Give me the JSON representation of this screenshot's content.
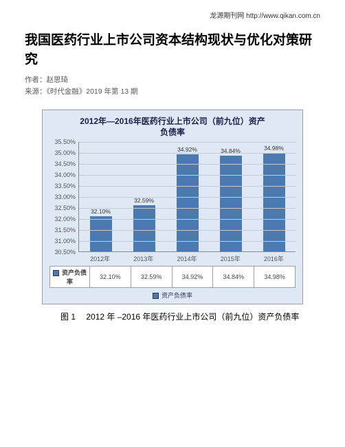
{
  "header": {
    "site_prefix": "龙源期刊网 ",
    "site_url": "http://www.qikan.com.cn"
  },
  "article": {
    "title": "我国医药行业上市公司资本结构现状与优化对策研究",
    "author_label": "作者：",
    "author": "赵思琦",
    "source_label": "来源：",
    "source": "《时代金融》2019 年第 13 期"
  },
  "chart": {
    "title_line1": "2012年—2016年医药行业上市公司（前九位）资产",
    "title_line2": "负债率",
    "type": "bar",
    "categories": [
      "2012年",
      "2013年",
      "2014年",
      "2015年",
      "2016年"
    ],
    "values": [
      32.1,
      32.59,
      34.92,
      34.84,
      34.98
    ],
    "value_labels": [
      "32.10%",
      "32.59%",
      "34.92%",
      "34.84%",
      "34.98%"
    ],
    "bar_color": "#4a7ab0",
    "ymin": 30.5,
    "ymax": 35.5,
    "yticks": [
      "35.50%",
      "35.00%",
      "34.50%",
      "34.00%",
      "33.50%",
      "33.00%",
      "32.50%",
      "32.00%",
      "31.50%",
      "31.00%",
      "30.50%"
    ],
    "yvalues": [
      35.5,
      35.0,
      34.5,
      34.0,
      33.5,
      33.0,
      32.5,
      32.0,
      31.5,
      31.0,
      30.5
    ],
    "row_header": "资产负债率",
    "row_cells": [
      "32.10%",
      "32.59%",
      "34.92%",
      "34.84%",
      "34.98%"
    ],
    "legend_text": "资产负债率",
    "background_color": "#dfe9f5",
    "grid_color": "#c2c9d2"
  },
  "caption": {
    "text": "图 1  2012 年 –2016 年医药行业上市公司（前九位）资产负债率"
  }
}
